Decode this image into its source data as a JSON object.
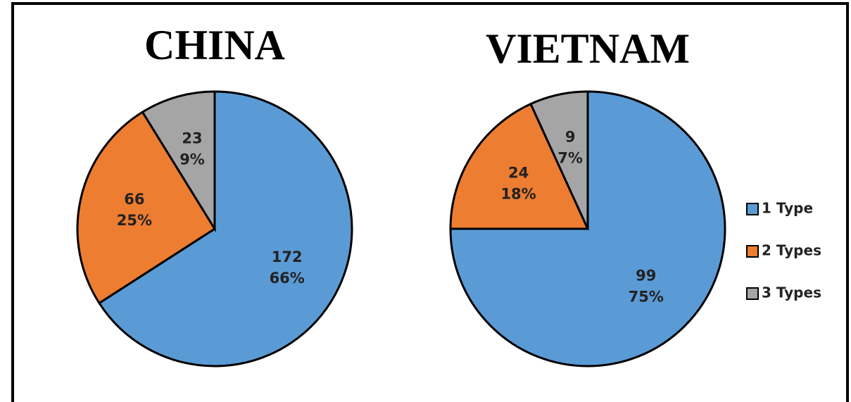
{
  "chart_data": [
    {
      "type": "pie",
      "title": "CHINA",
      "categories": [
        "1 Type",
        "2 Types",
        "3 Types"
      ],
      "values": [
        172,
        66,
        23
      ],
      "percent_labels": [
        "66%",
        "25%",
        "9%"
      ],
      "colors": [
        "#5b9bd5",
        "#ed7d31",
        "#a5a5a5"
      ]
    },
    {
      "type": "pie",
      "title": "VIETNAM",
      "categories": [
        "1 Type",
        "2 Types",
        "3 Types"
      ],
      "values": [
        99,
        24,
        9
      ],
      "percent_labels": [
        "75%",
        "18%",
        "7%"
      ],
      "colors": [
        "#5b9bd5",
        "#ed7d31",
        "#a5a5a5"
      ],
      "legend": "right"
    }
  ]
}
